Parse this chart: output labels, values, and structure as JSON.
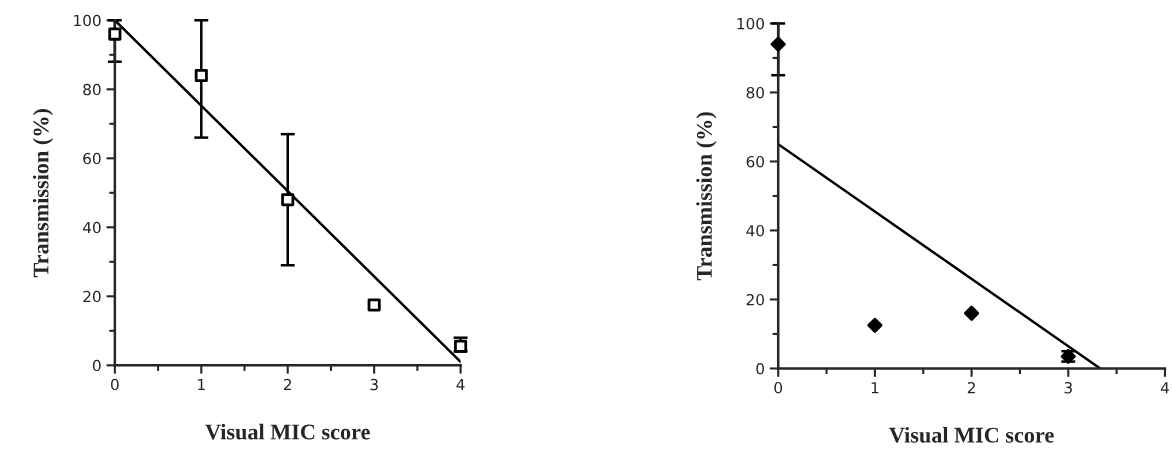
{
  "chart_data": [
    {
      "type": "scatter",
      "xlabel": "Visual MIC score",
      "ylabel": "Transmission (%)",
      "xlim": [
        0,
        4
      ],
      "ylim": [
        0,
        100
      ],
      "xticks": [
        0,
        1,
        2,
        3,
        4
      ],
      "yticks": [
        0,
        20,
        40,
        60,
        80,
        100
      ],
      "grid": false,
      "legend": false,
      "marker": "square",
      "series": [
        {
          "color": "#000000",
          "x": [
            0,
            1,
            2,
            3,
            4
          ],
          "values": [
            96,
            84,
            48,
            17.5,
            5.5
          ],
          "errors": [
            [
              88,
              100
            ],
            [
              66,
              100
            ],
            [
              29,
              67
            ],
            null,
            [
              4,
              8
            ]
          ]
        },
        {
          "type": "line",
          "color": "#000000",
          "marker": "none",
          "x": [
            0,
            4
          ],
          "values": [
            100,
            1
          ]
        }
      ]
    },
    {
      "type": "scatter",
      "xlabel": "Visual MIC score",
      "ylabel": "Transmission (%)",
      "xlim": [
        0,
        4
      ],
      "ylim": [
        0,
        100
      ],
      "xticks": [
        0,
        1,
        2,
        3,
        4
      ],
      "yticks": [
        0,
        20,
        40,
        60,
        80,
        100
      ],
      "grid": false,
      "legend": false,
      "marker": "diamond",
      "series": [
        {
          "color": "#000000",
          "x": [
            0,
            1,
            2,
            3
          ],
          "values": [
            94,
            12.5,
            16,
            3.5
          ],
          "errors": [
            [
              85,
              100
            ],
            null,
            null,
            [
              2,
              5
            ]
          ]
        },
        {
          "type": "line",
          "color": "#000000",
          "marker": "none",
          "x": [
            0,
            3.33
          ],
          "values": [
            65,
            0
          ]
        }
      ]
    }
  ]
}
